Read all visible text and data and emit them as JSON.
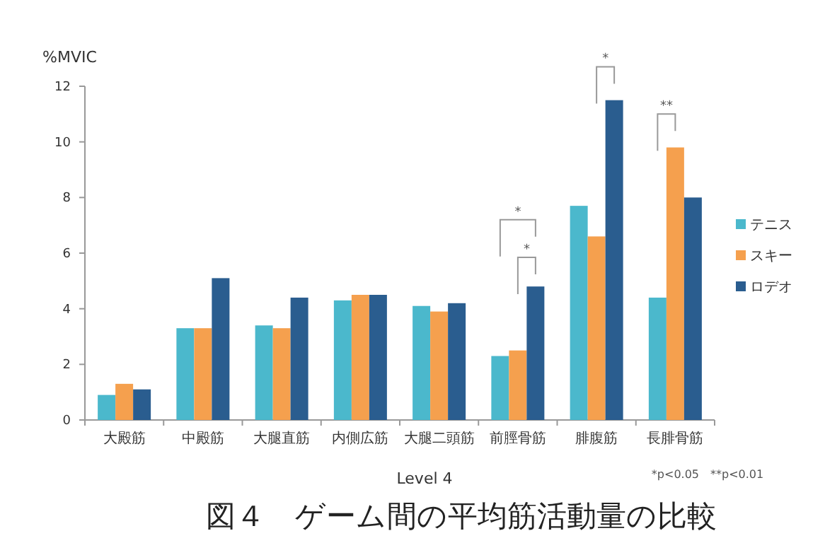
{
  "chart_data": {
    "type": "bar",
    "title": "図４　ゲーム間の平均筋活動量の比較",
    "xlabel": "Level 4",
    "ylabel": "%MVIC",
    "categories": [
      "大殿筋",
      "中殿筋",
      "大腿直筋",
      "内側広筋",
      "大腿二頭筋",
      "前脛骨筋",
      "腓腹筋",
      "長腓骨筋"
    ],
    "series": [
      {
        "name": "テニス",
        "color": "#4bb8cc",
        "values": [
          0.9,
          3.3,
          3.4,
          4.3,
          4.1,
          2.3,
          7.7,
          4.4
        ]
      },
      {
        "name": "スキー",
        "color": "#f5a04e",
        "values": [
          1.3,
          3.3,
          3.3,
          4.5,
          3.9,
          2.5,
          6.6,
          9.8
        ]
      },
      {
        "name": "ロデオ",
        "color": "#2a5d8f",
        "values": [
          1.1,
          5.1,
          4.4,
          4.5,
          4.2,
          4.8,
          11.5,
          8.0
        ]
      }
    ],
    "ylim": [
      0,
      12
    ],
    "yticks": [
      0,
      2,
      4,
      6,
      8,
      10,
      12
    ],
    "grid": false,
    "legend": "right",
    "annotations": [
      "*",
      "*",
      "*",
      "**",
      "*p<0.05　**p<0.01"
    ]
  }
}
